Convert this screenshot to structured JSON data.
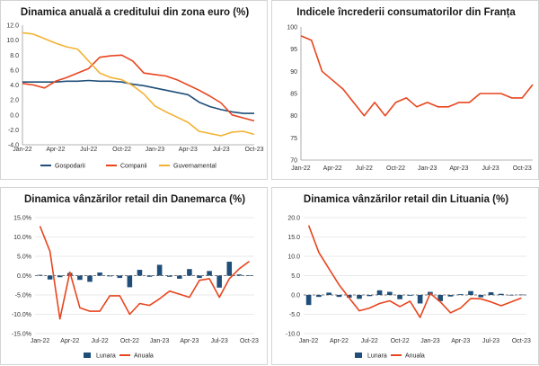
{
  "chart_data": [
    {
      "type": "line",
      "title": "Dinamica anuală a creditului din zona euro (%)",
      "categories": [
        "Jan-22",
        "Feb-22",
        "Mar-22",
        "Apr-22",
        "May-22",
        "Jun-22",
        "Jul-22",
        "Aug-22",
        "Sep-22",
        "Oct-22",
        "Nov-22",
        "Dec-22",
        "Jan-23",
        "Feb-23",
        "Mar-23",
        "Apr-23",
        "May-23",
        "Jun-23",
        "Jul-23",
        "Aug-23",
        "Sep-23",
        "Oct-23"
      ],
      "xtick_labels": [
        "Jan-22",
        "Apr-22",
        "Jul-22",
        "Oct-22",
        "Jan-23",
        "Apr-23",
        "Jul-23",
        "Oct-23"
      ],
      "ylim": [
        -4,
        12
      ],
      "yticks": [
        "-4.0",
        "-2.0",
        "0.0",
        "2.0",
        "4.0",
        "6.0",
        "8.0",
        "10.0",
        "12.0"
      ],
      "series": [
        {
          "name": "Gospodarii",
          "color": "#1f4e79",
          "values": [
            4.4,
            4.4,
            4.4,
            4.4,
            4.5,
            4.5,
            4.6,
            4.5,
            4.5,
            4.4,
            4.1,
            3.9,
            3.6,
            3.3,
            3.0,
            2.7,
            1.7,
            1.1,
            0.7,
            0.4,
            0.2,
            0.2
          ]
        },
        {
          "name": "Companii",
          "color": "#e8451e",
          "values": [
            4.2,
            4.0,
            3.6,
            4.5,
            5.0,
            5.6,
            6.2,
            7.7,
            7.9,
            8.0,
            7.2,
            5.6,
            5.4,
            5.2,
            4.7,
            4.0,
            3.3,
            2.5,
            1.6,
            0.0,
            -0.4,
            -0.8
          ]
        },
        {
          "name": "Guvernamental",
          "color": "#f3b233",
          "values": [
            11.0,
            10.8,
            10.2,
            9.6,
            9.1,
            8.8,
            7.2,
            5.6,
            5.0,
            4.7,
            3.9,
            2.8,
            1.2,
            0.4,
            -0.3,
            -1.0,
            -2.2,
            -2.5,
            -2.8,
            -2.3,
            -2.2,
            -2.6
          ]
        }
      ]
    },
    {
      "type": "line",
      "title": "Indicele încrederii consumatorilor din Franța",
      "categories": [
        "Jan-22",
        "Feb-22",
        "Mar-22",
        "Apr-22",
        "May-22",
        "Jun-22",
        "Jul-22",
        "Aug-22",
        "Sep-22",
        "Oct-22",
        "Nov-22",
        "Dec-22",
        "Jan-23",
        "Feb-23",
        "Mar-23",
        "Apr-23",
        "May-23",
        "Jun-23",
        "Jul-23",
        "Aug-23",
        "Sep-23",
        "Oct-23",
        "Nov-23"
      ],
      "xtick_labels": [
        "Jan-22",
        "Apr-22",
        "Jul-22",
        "Oct-22",
        "Jan-23",
        "Apr-23",
        "Jul-23",
        "Oct-23"
      ],
      "ylim": [
        70,
        100
      ],
      "yticks": [
        "70",
        "75",
        "80",
        "85",
        "90",
        "95",
        "100"
      ],
      "series": [
        {
          "name": "Franța",
          "color": "#e8451e",
          "values": [
            98,
            97,
            90,
            88,
            86,
            83,
            80,
            83,
            80,
            83,
            84,
            82,
            83,
            82,
            82,
            83,
            83,
            85,
            85,
            85,
            84,
            84,
            87
          ]
        }
      ]
    },
    {
      "type": "bar+line",
      "title": "Dinamica vânzărilor retail din Danemarca (%)",
      "categories": [
        "Jan-22",
        "Feb-22",
        "Mar-22",
        "Apr-22",
        "May-22",
        "Jun-22",
        "Jul-22",
        "Aug-22",
        "Sep-22",
        "Oct-22",
        "Nov-22",
        "Dec-22",
        "Jan-23",
        "Feb-23",
        "Mar-23",
        "Apr-23",
        "May-23",
        "Jun-23",
        "Jul-23",
        "Aug-23",
        "Sep-23",
        "Oct-23"
      ],
      "xtick_labels": [
        "Jan-22",
        "Apr-22",
        "Jul-22",
        "Oct-22",
        "Jan-23",
        "Apr-23",
        "Jul-23",
        "Oct-23"
      ],
      "ylim": [
        -15,
        15
      ],
      "yticks": [
        "-15.0%",
        "-10.0%",
        "-5.0%",
        "0.0%",
        "5.0%",
        "10.0%",
        "15.0%"
      ],
      "series": [
        {
          "name": "Lunara",
          "type": "bar",
          "color": "#1f4e79",
          "values": [
            0.2,
            -1.0,
            -0.4,
            0.7,
            -1.1,
            -1.6,
            0.8,
            -0.2,
            -0.6,
            -3.0,
            1.5,
            -0.3,
            2.8,
            -0.3,
            -0.8,
            1.7,
            -0.6,
            1.2,
            -3.1,
            3.6,
            0.3,
            0.1
          ]
        },
        {
          "name": "Anuala",
          "type": "line",
          "color": "#e8451e",
          "values": [
            12.8,
            6.3,
            -11.2,
            0.9,
            -8.3,
            -9.2,
            -9.2,
            -5.2,
            -5.2,
            -10.0,
            -7.2,
            -7.7,
            -6.0,
            -4.0,
            -4.8,
            -5.6,
            -1.2,
            -0.8,
            -5.6,
            -0.8,
            1.8,
            3.7
          ]
        }
      ]
    },
    {
      "type": "bar+line",
      "title": "Dinamica vânzărilor retail din Lituania (%)",
      "categories": [
        "Jan-22",
        "Feb-22",
        "Mar-22",
        "Apr-22",
        "May-22",
        "Jun-22",
        "Jul-22",
        "Aug-22",
        "Sep-22",
        "Oct-22",
        "Nov-22",
        "Dec-22",
        "Jan-23",
        "Feb-23",
        "Mar-23",
        "Apr-23",
        "May-23",
        "Jun-23",
        "Jul-23",
        "Aug-23",
        "Sep-23",
        "Oct-23"
      ],
      "xtick_labels": [
        "Jan-22",
        "Apr-22",
        "Jul-22",
        "Oct-22",
        "Jan-23",
        "Apr-23",
        "Jul-23",
        "Oct-23"
      ],
      "ylim": [
        -10,
        20
      ],
      "yticks": [
        "-10.0",
        "-5.0",
        "0.0",
        "5.0",
        "10.0",
        "15.0",
        "20.0"
      ],
      "series": [
        {
          "name": "Lunara",
          "type": "bar",
          "color": "#1f4e79",
          "values": [
            -2.6,
            -0.5,
            0.6,
            -0.5,
            -0.7,
            -1.0,
            -0.3,
            1.2,
            0.8,
            -1.1,
            -0.2,
            -2.2,
            0.8,
            -1.6,
            -0.4,
            0.2,
            1.0,
            -0.6,
            0.7,
            0.3,
            -0.1,
            0.1
          ]
        },
        {
          "name": "Anuala",
          "type": "line",
          "color": "#e8451e",
          "values": [
            18.0,
            11.0,
            6.8,
            2.6,
            -0.8,
            -4.1,
            -3.4,
            -2.2,
            -1.5,
            -3.0,
            -1.6,
            -5.8,
            0.4,
            -1.8,
            -4.6,
            -3.4,
            -0.9,
            -1.0,
            -1.8,
            -2.8,
            -1.8,
            -0.8
          ]
        }
      ]
    }
  ]
}
